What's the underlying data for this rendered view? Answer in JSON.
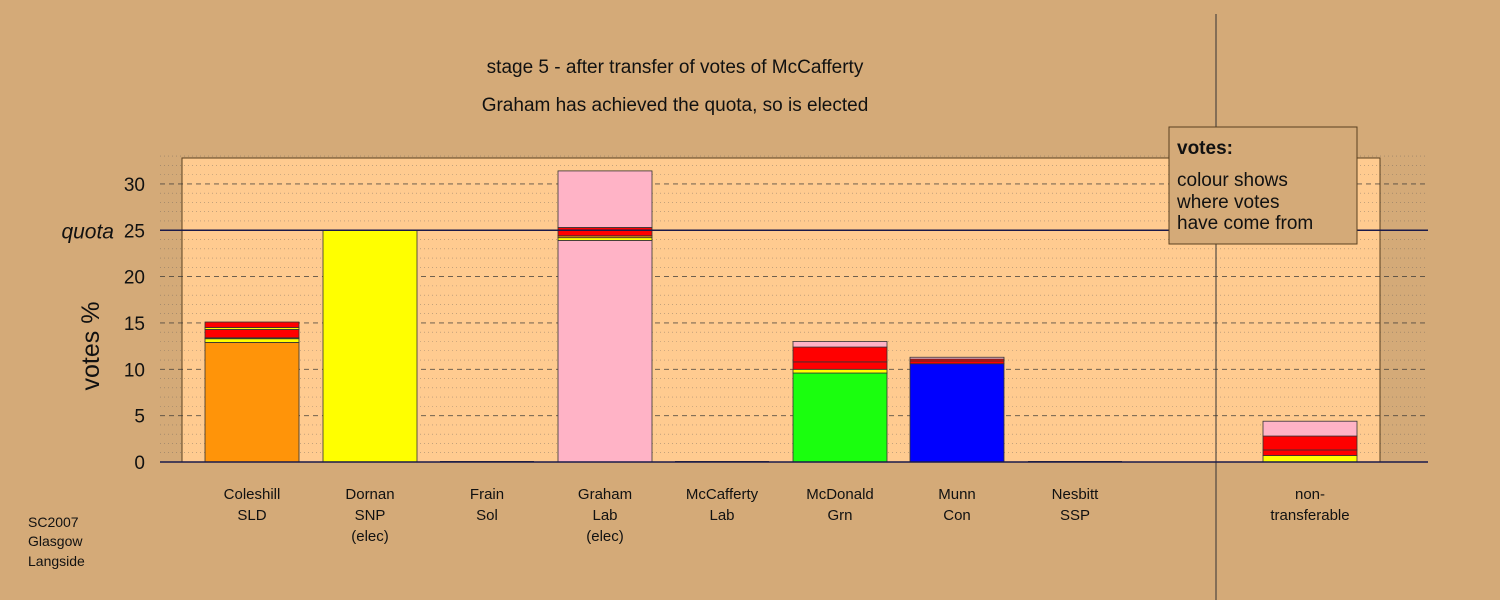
{
  "chart_data": {
    "type": "bar",
    "title": "stage 5 - after transfer of votes of McCafferty",
    "subtitle": "Graham has achieved the quota, so is elected",
    "ylabel": "votes %",
    "ylim": [
      0,
      33
    ],
    "yticks": [
      0,
      5,
      10,
      15,
      20,
      25,
      30
    ],
    "quota": 25,
    "quota_label": "quota",
    "grid": true,
    "candidates": [
      {
        "name": "Coleshill",
        "party": "SLD",
        "note": "",
        "segments": [
          {
            "value": 12.9,
            "color": "#ff9409"
          },
          {
            "value": 0.4,
            "color": "#ffff00"
          },
          {
            "value": 0.1,
            "color": "#00ff00"
          },
          {
            "value": 0.9,
            "color": "#ff0000"
          },
          {
            "value": 0.2,
            "color": "#ffff00"
          },
          {
            "value": 0.6,
            "color": "#ff0000"
          }
        ]
      },
      {
        "name": "Dornan",
        "party": "SNP",
        "note": "(elec)",
        "segments": [
          {
            "value": 25.0,
            "color": "#ffff00"
          }
        ]
      },
      {
        "name": "Frain",
        "party": "Sol",
        "note": "",
        "segments": []
      },
      {
        "name": "Graham",
        "party": "Lab",
        "note": "(elec)",
        "segments": [
          {
            "value": 23.9,
            "color": "#ffb3c6"
          },
          {
            "value": 0.3,
            "color": "#ffff00"
          },
          {
            "value": 0.2,
            "color": "#ff9409"
          },
          {
            "value": 0.9,
            "color": "#ff0000"
          },
          {
            "value": 6.1,
            "color": "#ffb3c6"
          }
        ]
      },
      {
        "name": "McCafferty",
        "party": "Lab",
        "note": "",
        "segments": []
      },
      {
        "name": "McDonald",
        "party": "Grn",
        "note": "",
        "segments": [
          {
            "value": 9.6,
            "color": "#1aff0e"
          },
          {
            "value": 0.4,
            "color": "#ffff00"
          },
          {
            "value": 0.8,
            "color": "#ff0000"
          },
          {
            "value": 1.6,
            "color": "#ff0000"
          },
          {
            "value": 0.6,
            "color": "#ffb3c6"
          }
        ]
      },
      {
        "name": "Munn",
        "party": "Con",
        "note": "",
        "segments": [
          {
            "value": 10.6,
            "color": "#0000ff"
          },
          {
            "value": 0.3,
            "color": "#ff0000"
          },
          {
            "value": 0.2,
            "color": "#ff0000"
          },
          {
            "value": 0.2,
            "color": "#ffb3c6"
          }
        ]
      },
      {
        "name": "Nesbitt",
        "party": "SSP",
        "note": "",
        "segments": []
      }
    ],
    "nontransferable": {
      "name": "non-",
      "party": "transferable",
      "note": "",
      "segments": [
        {
          "value": 0.7,
          "color": "#ffff00"
        },
        {
          "value": 0.6,
          "color": "#ff0000"
        },
        {
          "value": 1.5,
          "color": "#ff0000"
        },
        {
          "value": 1.6,
          "color": "#ffb3c6"
        }
      ]
    },
    "legend": {
      "position": "top-right",
      "title": "votes:",
      "lines": [
        "colour shows",
        "where votes",
        "have come from"
      ]
    }
  },
  "footer": {
    "election": "SC2007",
    "city": "Glasgow",
    "constituency": "Langside"
  },
  "colors": {
    "background": "#d4aa78",
    "plot_area": "#ffcb90",
    "quota_line": "#1a1a4a"
  }
}
